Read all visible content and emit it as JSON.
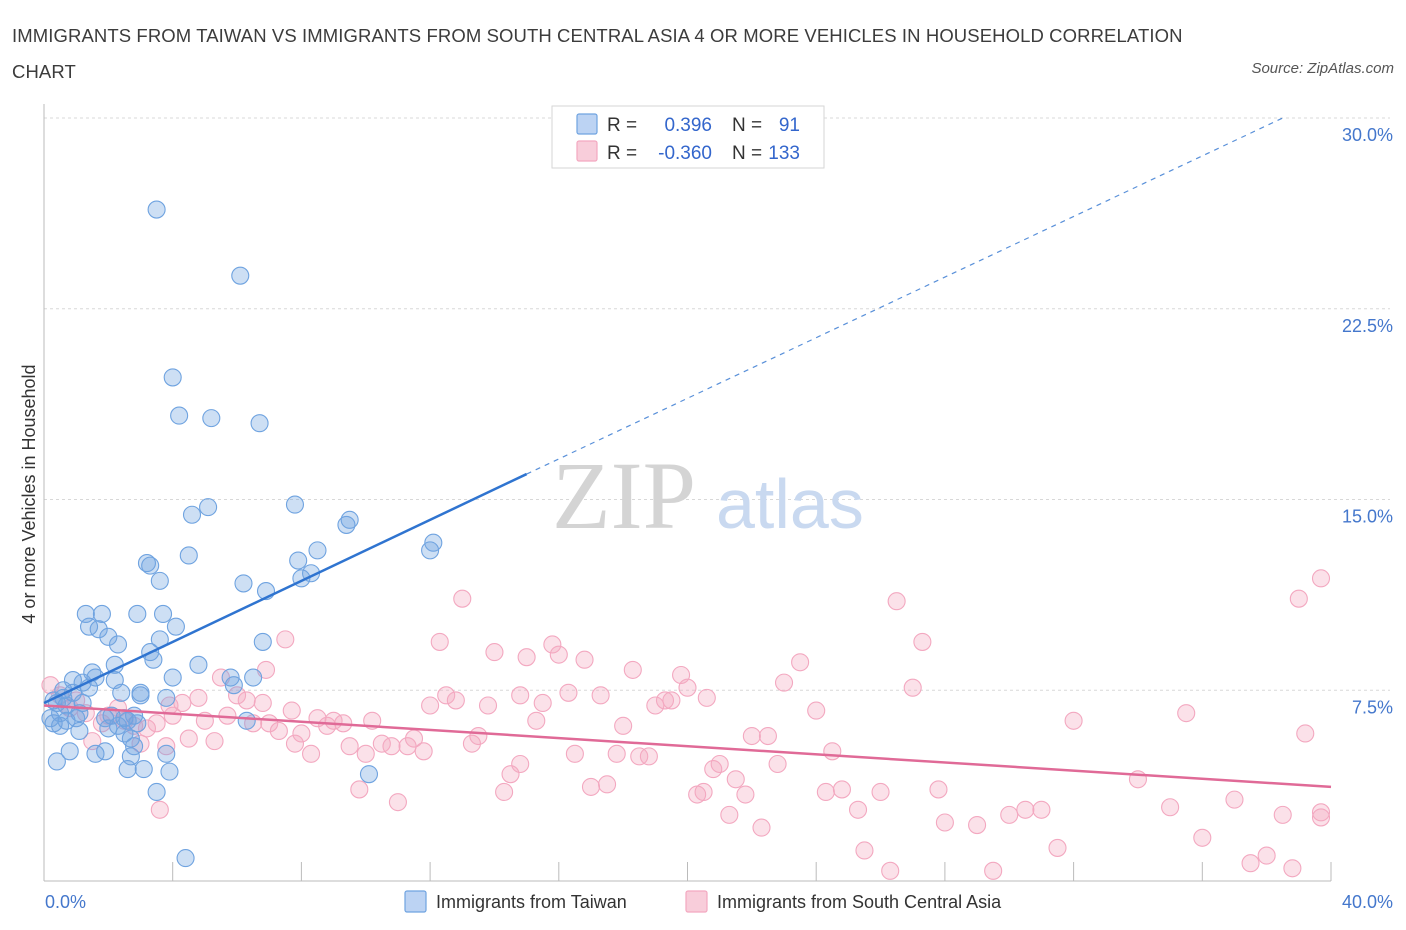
{
  "title": "IMMIGRANTS FROM TAIWAN VS IMMIGRANTS FROM SOUTH CENTRAL ASIA 4 OR MORE VEHICLES IN HOUSEHOLD CORRELATION CHART",
  "source": "Source: ZipAtlas.com",
  "watermark": {
    "zip": "ZIP",
    "atlas": "atlas"
  },
  "colors": {
    "taiwan": "#6fa3e0",
    "taiwan_line": "#2f74d0",
    "sca": "#f3a8c0",
    "sca_line": "#e06a97",
    "grid": "#d8d8d8",
    "tick_text": "#4477cc"
  },
  "legend": {
    "rows": [
      {
        "r_label": "R =",
        "r_value": "0.396",
        "n_label": "N =",
        "n_value": "91"
      },
      {
        "r_label": "R =",
        "r_value": "-0.360",
        "n_label": "N =",
        "n_value": "133"
      }
    ]
  },
  "chart_data": {
    "type": "scatter",
    "title": "IMMIGRANTS FROM TAIWAN VS IMMIGRANTS FROM SOUTH CENTRAL ASIA 4 OR MORE VEHICLES IN HOUSEHOLD CORRELATION CHART",
    "xlabel": "",
    "ylabel": "4 or more Vehicles in Household",
    "xlim": [
      0,
      40
    ],
    "ylim": [
      0,
      30
    ],
    "x_tick_labels": [
      "0.0%",
      "40.0%"
    ],
    "y_tick_labels": [
      "7.5%",
      "15.0%",
      "22.5%",
      "30.0%"
    ],
    "y_ticks": [
      7.5,
      15.0,
      22.5,
      30.0
    ],
    "grid": true,
    "legend_position": "top-center",
    "series": [
      {
        "name": "Immigrants from Taiwan",
        "R": 0.396,
        "N": 91,
        "trend": {
          "x_start": 0,
          "y_start": 7.0,
          "x_solid_end": 15.0,
          "y_solid_end": 16.0,
          "x_dash_end": 38.5,
          "y_dash_end": 30.0
        },
        "points": [
          [
            0.2,
            6.4
          ],
          [
            0.3,
            6.2
          ],
          [
            0.4,
            7.0
          ],
          [
            0.5,
            6.6
          ],
          [
            0.6,
            7.2
          ],
          [
            0.7,
            6.3
          ],
          [
            0.8,
            5.1
          ],
          [
            0.9,
            7.4
          ],
          [
            1.0,
            6.4
          ],
          [
            1.1,
            5.9
          ],
          [
            0.4,
            4.7
          ],
          [
            0.6,
            7.5
          ],
          [
            0.9,
            7.9
          ],
          [
            1.2,
            7.8
          ],
          [
            1.3,
            10.5
          ],
          [
            1.4,
            10.0
          ],
          [
            1.5,
            8.2
          ],
          [
            1.6,
            8.0
          ],
          [
            1.7,
            9.9
          ],
          [
            1.8,
            10.5
          ],
          [
            1.9,
            5.1
          ],
          [
            2.0,
            9.6
          ],
          [
            2.1,
            6.5
          ],
          [
            2.2,
            8.5
          ],
          [
            2.3,
            9.3
          ],
          [
            2.4,
            7.4
          ],
          [
            2.5,
            5.8
          ],
          [
            2.6,
            6.3
          ],
          [
            2.7,
            5.6
          ],
          [
            2.8,
            6.5
          ],
          [
            2.9,
            10.5
          ],
          [
            3.0,
            7.3
          ],
          [
            3.1,
            4.4
          ],
          [
            3.2,
            12.5
          ],
          [
            3.3,
            9.0
          ],
          [
            3.4,
            8.7
          ],
          [
            3.5,
            3.5
          ],
          [
            3.6,
            11.8
          ],
          [
            3.7,
            10.5
          ],
          [
            3.8,
            5.0
          ],
          [
            3.9,
            4.3
          ],
          [
            4.0,
            19.8
          ],
          [
            4.1,
            10.0
          ],
          [
            4.2,
            18.3
          ],
          [
            4.4,
            0.9
          ],
          [
            4.5,
            12.8
          ],
          [
            4.6,
            14.4
          ],
          [
            4.8,
            8.5
          ],
          [
            5.1,
            14.7
          ],
          [
            5.2,
            18.2
          ],
          [
            5.8,
            8.0
          ],
          [
            5.9,
            7.7
          ],
          [
            6.1,
            23.8
          ],
          [
            6.2,
            11.7
          ],
          [
            6.3,
            6.3
          ],
          [
            6.5,
            8.0
          ],
          [
            6.7,
            18.0
          ],
          [
            6.8,
            9.4
          ],
          [
            6.9,
            11.4
          ],
          [
            7.8,
            14.8
          ],
          [
            7.9,
            12.6
          ],
          [
            8.0,
            11.9
          ],
          [
            8.3,
            12.1
          ],
          [
            8.5,
            13.0
          ],
          [
            9.4,
            14.0
          ],
          [
            9.5,
            14.2
          ],
          [
            10.1,
            4.2
          ],
          [
            12.0,
            13.0
          ],
          [
            12.1,
            13.3
          ],
          [
            3.5,
            26.4
          ],
          [
            3.3,
            12.4
          ],
          [
            2.9,
            6.2
          ],
          [
            1.6,
            5.0
          ],
          [
            2.7,
            4.9
          ],
          [
            2.8,
            5.3
          ],
          [
            2.6,
            4.4
          ],
          [
            1.9,
            6.4
          ],
          [
            3.6,
            9.5
          ],
          [
            3.0,
            7.4
          ],
          [
            2.2,
            7.9
          ],
          [
            0.7,
            6.9
          ],
          [
            1.1,
            6.6
          ],
          [
            0.5,
            6.1
          ],
          [
            0.3,
            7.1
          ],
          [
            1.4,
            7.6
          ],
          [
            2.0,
            6.0
          ],
          [
            2.3,
            6.1
          ],
          [
            2.5,
            6.4
          ],
          [
            1.2,
            7.0
          ],
          [
            4.0,
            8.0
          ],
          [
            3.8,
            7.2
          ]
        ]
      },
      {
        "name": "Immigrants from South Central Asia",
        "R": -0.36,
        "N": 133,
        "trend": {
          "x_start": 0,
          "y_start": 6.9,
          "x_end": 40,
          "y_end": 3.7
        },
        "points": [
          [
            0.2,
            7.7
          ],
          [
            0.5,
            7.3
          ],
          [
            0.8,
            6.8
          ],
          [
            1.0,
            7.1
          ],
          [
            1.3,
            6.6
          ],
          [
            1.5,
            5.5
          ],
          [
            1.8,
            6.2
          ],
          [
            2.0,
            6.5
          ],
          [
            2.3,
            6.8
          ],
          [
            2.5,
            6.3
          ],
          [
            2.8,
            6.1
          ],
          [
            3.0,
            5.4
          ],
          [
            3.2,
            6.0
          ],
          [
            3.5,
            6.2
          ],
          [
            3.6,
            2.8
          ],
          [
            3.8,
            5.3
          ],
          [
            4.0,
            6.5
          ],
          [
            4.3,
            7.0
          ],
          [
            4.5,
            5.6
          ],
          [
            4.8,
            7.2
          ],
          [
            5.0,
            6.3
          ],
          [
            5.3,
            5.5
          ],
          [
            5.5,
            8.0
          ],
          [
            5.7,
            6.5
          ],
          [
            6.0,
            7.3
          ],
          [
            6.3,
            7.1
          ],
          [
            6.5,
            6.2
          ],
          [
            6.8,
            7.0
          ],
          [
            7.0,
            6.2
          ],
          [
            7.3,
            5.9
          ],
          [
            7.5,
            9.5
          ],
          [
            7.8,
            5.4
          ],
          [
            8.0,
            5.8
          ],
          [
            8.3,
            5.0
          ],
          [
            8.5,
            6.4
          ],
          [
            8.8,
            6.1
          ],
          [
            9.0,
            6.3
          ],
          [
            9.3,
            6.2
          ],
          [
            9.5,
            5.3
          ],
          [
            9.8,
            3.6
          ],
          [
            10.0,
            5.0
          ],
          [
            10.2,
            6.3
          ],
          [
            10.5,
            5.4
          ],
          [
            10.8,
            5.3
          ],
          [
            11.0,
            3.1
          ],
          [
            11.3,
            5.3
          ],
          [
            11.5,
            5.6
          ],
          [
            11.8,
            5.1
          ],
          [
            12.0,
            6.9
          ],
          [
            12.3,
            9.4
          ],
          [
            12.5,
            7.3
          ],
          [
            12.8,
            7.1
          ],
          [
            13.0,
            11.1
          ],
          [
            13.3,
            5.4
          ],
          [
            13.5,
            5.7
          ],
          [
            13.8,
            6.9
          ],
          [
            14.0,
            9.0
          ],
          [
            14.3,
            3.5
          ],
          [
            14.5,
            4.2
          ],
          [
            14.8,
            4.6
          ],
          [
            15.0,
            8.8
          ],
          [
            15.3,
            6.3
          ],
          [
            15.5,
            7.0
          ],
          [
            15.8,
            9.3
          ],
          [
            16.0,
            8.9
          ],
          [
            16.3,
            7.4
          ],
          [
            16.5,
            5.0
          ],
          [
            16.8,
            8.7
          ],
          [
            17.0,
            3.7
          ],
          [
            17.3,
            7.3
          ],
          [
            17.5,
            3.8
          ],
          [
            17.8,
            5.0
          ],
          [
            18.0,
            6.1
          ],
          [
            18.3,
            8.3
          ],
          [
            18.5,
            4.9
          ],
          [
            18.8,
            4.9
          ],
          [
            19.0,
            6.9
          ],
          [
            19.3,
            7.1
          ],
          [
            19.5,
            7.1
          ],
          [
            19.8,
            8.1
          ],
          [
            20.0,
            7.6
          ],
          [
            20.3,
            3.4
          ],
          [
            20.5,
            3.5
          ],
          [
            20.8,
            4.4
          ],
          [
            21.0,
            4.6
          ],
          [
            21.3,
            2.6
          ],
          [
            21.5,
            4.0
          ],
          [
            21.8,
            3.4
          ],
          [
            22.0,
            5.7
          ],
          [
            22.3,
            2.1
          ],
          [
            22.5,
            5.7
          ],
          [
            23.0,
            7.8
          ],
          [
            23.5,
            8.6
          ],
          [
            24.0,
            6.7
          ],
          [
            24.3,
            3.5
          ],
          [
            24.5,
            5.1
          ],
          [
            24.8,
            3.6
          ],
          [
            25.3,
            2.8
          ],
          [
            25.5,
            1.2
          ],
          [
            26.0,
            3.5
          ],
          [
            26.3,
            0.4
          ],
          [
            26.5,
            11.0
          ],
          [
            27.0,
            7.6
          ],
          [
            27.3,
            9.4
          ],
          [
            27.8,
            3.6
          ],
          [
            28.0,
            2.3
          ],
          [
            29.0,
            2.2
          ],
          [
            29.5,
            0.4
          ],
          [
            30.0,
            2.6
          ],
          [
            30.5,
            2.8
          ],
          [
            31.0,
            2.8
          ],
          [
            31.5,
            1.3
          ],
          [
            32.0,
            6.3
          ],
          [
            34.0,
            4.0
          ],
          [
            35.0,
            2.9
          ],
          [
            35.5,
            6.6
          ],
          [
            36.0,
            1.7
          ],
          [
            37.0,
            3.2
          ],
          [
            37.5,
            0.7
          ],
          [
            38.0,
            1.0
          ],
          [
            38.5,
            2.6
          ],
          [
            38.8,
            0.5
          ],
          [
            39.0,
            11.1
          ],
          [
            39.2,
            5.8
          ],
          [
            40.0,
            2.7
          ],
          [
            40.5,
            2.5
          ],
          [
            41.0,
            11.9
          ],
          [
            22.8,
            4.6
          ],
          [
            20.6,
            7.2
          ],
          [
            14.8,
            7.3
          ],
          [
            7.7,
            6.7
          ],
          [
            6.9,
            8.3
          ],
          [
            3.9,
            6.9
          ]
        ]
      }
    ]
  },
  "bottom_legend": [
    {
      "label": "Immigrants from Taiwan"
    },
    {
      "label": "Immigrants from South Central Asia"
    }
  ]
}
